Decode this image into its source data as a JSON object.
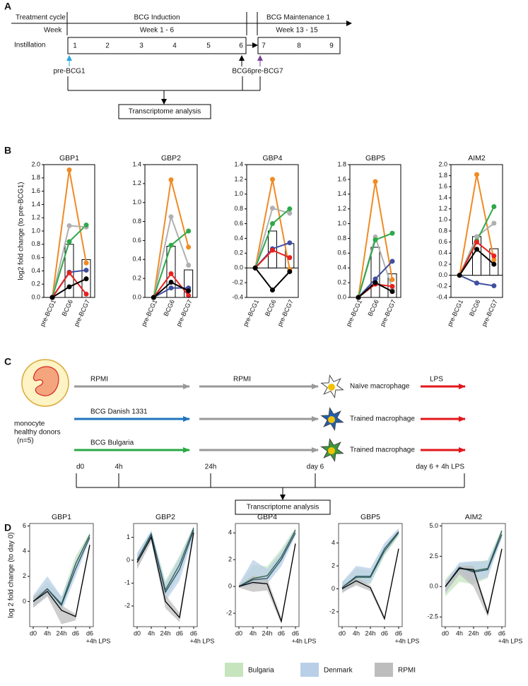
{
  "panels": [
    "A",
    "B",
    "C",
    "D"
  ],
  "diagram_a": {
    "treatment_cycle": "Treatment cycle",
    "week": "Week",
    "instillation": "Instillation",
    "induction": "BCG Induction",
    "induction_weeks": "Week 1 - 6",
    "maintenance": "BCG Maintenance 1",
    "maintenance_weeks": "Week 13 - 15",
    "instillations": [
      1,
      2,
      3,
      4,
      5,
      6,
      7,
      8,
      9
    ],
    "samples": [
      "pre-BCG1",
      "BCG6",
      "pre-BCG7"
    ],
    "analysis": "Transcriptome analysis"
  },
  "diagram_c": {
    "cell": [
      "monocyte",
      "healthy donors",
      "(n=5)"
    ],
    "arms": [
      {
        "stimulus": "RPMI",
        "rest": "RPMI",
        "macrophage": "Naïve macrophage"
      },
      {
        "stimulus": "BCG Danish 1331",
        "macrophage": "Trained macrophage"
      },
      {
        "stimulus": "BCG Bulgaria",
        "macrophage": "Trained macrophage"
      }
    ],
    "challenge": "LPS",
    "timepoints": [
      "d0",
      "4h",
      "24h",
      "day 6",
      "day 6 + 4h LPS"
    ],
    "analysis": "Transcriptome analysis"
  },
  "chart_data": [
    {
      "type": "line",
      "title": "GBP1",
      "ylabel": "log2 fold change (to pre-BCG1)",
      "categories": [
        "pre-BCG1",
        "BCG6",
        "pre-BCG7"
      ],
      "ylim": [
        0,
        2.0
      ],
      "yticks": [
        {
          "value": 0,
          "label": "0.0"
        },
        0.2,
        0.4,
        0.6,
        0.8,
        {
          "value": 1,
          "label": "1.0"
        },
        1.2,
        1.4,
        1.6,
        1.8,
        {
          "value": 2,
          "label": "2.0"
        }
      ],
      "bar_values": [
        0,
        0.8,
        0.57
      ],
      "bar_fill": "#ffffff",
      "bar_edge": "#000000",
      "series": [
        {
          "color": "#f08a24",
          "values": [
            0,
            1.92,
            0.52
          ]
        },
        {
          "color": "#b0b0b0",
          "values": [
            0,
            1.08,
            1.06
          ]
        },
        {
          "color": "#2fa84a",
          "values": [
            0,
            0.84,
            1.09
          ]
        },
        {
          "color": "#3f4fa0",
          "values": [
            0,
            0.38,
            0.41
          ]
        },
        {
          "color": "#e8211f",
          "values": [
            0,
            0.37,
            0.05
          ]
        },
        {
          "color": "#000000",
          "values": [
            0,
            0.16,
            0.28
          ]
        }
      ]
    },
    {
      "type": "line",
      "title": "GBP2",
      "categories": [
        "pre-BCG1",
        "BCG6",
        "pre-BCG7"
      ],
      "ylim": [
        0,
        1.4
      ],
      "yticks": [
        {
          "value": 0,
          "label": "0.0"
        },
        0.2,
        0.4,
        0.6,
        0.8,
        {
          "value": 1,
          "label": "1.0"
        },
        1.2,
        1.4
      ],
      "bar_values": [
        0,
        0.54,
        0.29
      ],
      "bar_fill": "#ffffff",
      "bar_edge": "#000000",
      "series": [
        {
          "color": "#f08a24",
          "values": [
            0,
            1.24,
            0.53
          ]
        },
        {
          "color": "#b0b0b0",
          "values": [
            0,
            0.85,
            0.34
          ]
        },
        {
          "color": "#2fa84a",
          "values": [
            0,
            0.55,
            0.7
          ]
        },
        {
          "color": "#3f4fa0",
          "values": [
            0,
            0.1,
            0.1
          ]
        },
        {
          "color": "#e8211f",
          "values": [
            0,
            0.25,
            0.02
          ]
        },
        {
          "color": "#000000",
          "values": [
            0,
            0.16,
            0.07
          ]
        }
      ]
    },
    {
      "type": "line",
      "title": "GBP4",
      "categories": [
        "pre-BCG1",
        "BCG6",
        "pre-BCG7"
      ],
      "ylim": [
        -0.4,
        1.4
      ],
      "yticks": [
        -0.4,
        -0.2,
        {
          "value": 0,
          "label": "0.0"
        },
        0.2,
        0.4,
        0.6,
        0.8,
        {
          "value": 1,
          "label": "1.0"
        },
        1.2,
        1.4
      ],
      "bar_values": [
        0,
        0.5,
        0.33
      ],
      "bar_fill": "#ffffff",
      "bar_edge": "#000000",
      "series": [
        {
          "color": "#f08a24",
          "values": [
            0,
            1.2,
            -0.02
          ]
        },
        {
          "color": "#b0b0b0",
          "values": [
            0,
            0.81,
            0.74
          ]
        },
        {
          "color": "#2fa84a",
          "values": [
            0,
            0.6,
            0.8
          ]
        },
        {
          "color": "#3f4fa0",
          "values": [
            0,
            0.26,
            0.34
          ]
        },
        {
          "color": "#e8211f",
          "values": [
            0,
            0.24,
            0.14
          ]
        },
        {
          "color": "#000000",
          "values": [
            0,
            -0.3,
            -0.05
          ]
        }
      ]
    },
    {
      "type": "line",
      "title": "GBP5",
      "categories": [
        "pre-BCG1",
        "BCG6",
        "pre-BCG7"
      ],
      "ylim": [
        0,
        1.8
      ],
      "yticks": [
        {
          "value": 0,
          "label": "0.0"
        },
        0.2,
        0.4,
        0.6,
        0.8,
        {
          "value": 1,
          "label": "1.0"
        },
        1.2,
        1.4,
        1.6,
        1.8
      ],
      "bar_values": [
        0,
        0.68,
        0.32
      ],
      "bar_fill": "#ffffff",
      "bar_edge": "#000000",
      "series": [
        {
          "color": "#f08a24",
          "values": [
            0,
            1.57,
            0.24
          ]
        },
        {
          "color": "#b0b0b0",
          "values": [
            0,
            0.82,
            0.12
          ]
        },
        {
          "color": "#2fa84a",
          "values": [
            0,
            0.78,
            0.87
          ]
        },
        {
          "color": "#3f4fa0",
          "values": [
            0,
            0.25,
            0.49
          ]
        },
        {
          "color": "#e8211f",
          "values": [
            0,
            0.18,
            0.15
          ]
        },
        {
          "color": "#000000",
          "values": [
            0,
            0.2,
            0.08
          ]
        }
      ]
    },
    {
      "type": "line",
      "title": "AIM2",
      "categories": [
        "pre-BCG1",
        "BCG6",
        "pre-BCG7"
      ],
      "ylim": [
        -0.4,
        2.0
      ],
      "yticks": [
        -0.4,
        -0.2,
        {
          "value": 0,
          "label": "0.0"
        },
        0.2,
        0.4,
        0.6,
        0.8,
        {
          "value": 1,
          "label": "1.0"
        },
        1.2,
        1.4,
        1.6,
        1.8,
        {
          "value": 2,
          "label": "2.0"
        }
      ],
      "bar_values": [
        0,
        0.7,
        0.48
      ],
      "bar_fill": "#ffffff",
      "bar_edge": "#000000",
      "series": [
        {
          "color": "#f08a24",
          "values": [
            0,
            1.82,
            0.28
          ]
        },
        {
          "color": "#b0b0b0",
          "values": [
            0,
            0.7,
            0.94
          ]
        },
        {
          "color": "#2fa84a",
          "values": [
            0,
            0.62,
            1.24
          ]
        },
        {
          "color": "#3f4fa0",
          "values": [
            0,
            -0.14,
            -0.19
          ]
        },
        {
          "color": "#e8211f",
          "values": [
            0,
            0.6,
            0.35
          ]
        },
        {
          "color": "#000000",
          "values": [
            0,
            0.47,
            0.2
          ]
        }
      ]
    },
    {
      "type": "band",
      "title": "GBP1",
      "ylabel": "log 2 fold change (to day 0)",
      "categories": [
        "d0",
        "4h",
        "24h",
        "d6",
        "d6"
      ],
      "x_note": "+4h LPS",
      "ylim": [
        -2,
        6.2
      ],
      "yticks": [
        0,
        2,
        4,
        6
      ],
      "series": [
        {
          "color": "#c6e5bf",
          "line_color": "#2f5e44",
          "values": [
            0,
            1.0,
            -0.2,
            3.0,
            5.3
          ],
          "lower": [
            -0.4,
            0.6,
            -0.6,
            2.4,
            5.0
          ],
          "upper": [
            0.4,
            1.6,
            0.4,
            3.6,
            5.5
          ]
        },
        {
          "color": "#b9cfe8",
          "line_color": "#27506a",
          "values": [
            0,
            1.0,
            -0.3,
            2.6,
            5.1
          ],
          "lower": [
            -0.5,
            0.5,
            -0.8,
            2.0,
            4.9
          ],
          "upper": [
            0.5,
            2.0,
            0.4,
            3.2,
            5.4
          ]
        },
        {
          "color": "#bdbdbd",
          "line_color": "#000000",
          "values": [
            0,
            0.8,
            -0.7,
            -1.2,
            4.5
          ],
          "lower": [
            -0.5,
            0.4,
            -1.8,
            -1.5,
            4.2
          ],
          "upper": [
            0.4,
            1.1,
            -0.3,
            -1.0,
            4.7
          ]
        }
      ]
    },
    {
      "type": "band",
      "title": "GBP2",
      "categories": [
        "d0",
        "4h",
        "24h",
        "d6",
        "d6"
      ],
      "x_note": "+4h LPS",
      "ylim": [
        -2.9,
        1.6
      ],
      "yticks": [
        -2,
        -1,
        0,
        1
      ],
      "series": [
        {
          "color": "#c6e5bf",
          "line_color": "#2f5e44",
          "values": [
            0,
            1.1,
            -1.3,
            -0.2,
            1.4
          ],
          "lower": [
            -0.2,
            0.9,
            -1.7,
            -0.6,
            1.2
          ],
          "upper": [
            0.3,
            1.3,
            -0.9,
            0.2,
            1.5
          ]
        },
        {
          "color": "#b9cfe8",
          "line_color": "#27506a",
          "values": [
            0,
            1.15,
            -1.4,
            -0.4,
            1.3
          ],
          "lower": [
            -0.3,
            0.9,
            -1.8,
            -0.9,
            1.1
          ],
          "upper": [
            0.3,
            1.3,
            -1.0,
            0.1,
            1.5
          ]
        },
        {
          "color": "#bdbdbd",
          "line_color": "#000000",
          "values": [
            -0.1,
            1.0,
            -1.8,
            -2.5,
            1.2
          ],
          "lower": [
            -0.4,
            0.8,
            -2.1,
            -2.7,
            1.0
          ],
          "upper": [
            0.1,
            1.1,
            -1.5,
            -2.3,
            1.4
          ]
        }
      ]
    },
    {
      "type": "band",
      "title": "GBP4",
      "categories": [
        "d0",
        "4h",
        "24h",
        "d6",
        "d6"
      ],
      "x_note": "+4h LPS",
      "ylim": [
        -3,
        4.7
      ],
      "yticks": [
        -2,
        0,
        2,
        4
      ],
      "series": [
        {
          "color": "#c6e5bf",
          "line_color": "#2f5e44",
          "values": [
            0,
            0.6,
            0.8,
            2.2,
            4.2
          ],
          "lower": [
            -0.1,
            0.3,
            0.4,
            1.8,
            4.0
          ],
          "upper": [
            0.1,
            1.6,
            1.5,
            2.8,
            4.4
          ]
        },
        {
          "color": "#b9cfe8",
          "line_color": "#27506a",
          "values": [
            0,
            0.5,
            0.6,
            2.0,
            4.0
          ],
          "lower": [
            -0.1,
            0.1,
            0.2,
            1.5,
            3.8
          ],
          "upper": [
            0.2,
            2.0,
            1.3,
            2.6,
            4.3
          ]
        },
        {
          "color": "#bdbdbd",
          "line_color": "#000000",
          "values": [
            0,
            0.3,
            0.2,
            -2.6,
            3.2
          ],
          "lower": [
            -0.1,
            -0.4,
            -0.3,
            -2.8,
            3.0
          ],
          "upper": [
            0.1,
            0.8,
            0.6,
            -2.3,
            3.4
          ]
        }
      ]
    },
    {
      "type": "band",
      "title": "GBP5",
      "categories": [
        "d0",
        "4h",
        "24h",
        "d6",
        "d6"
      ],
      "x_note": "+4h LPS",
      "ylim": [
        -3.3,
        5.7
      ],
      "yticks": [
        -2,
        0,
        2,
        4
      ],
      "series": [
        {
          "color": "#c6e5bf",
          "line_color": "#2f5e44",
          "values": [
            0.1,
            1.0,
            1.0,
            3.3,
            4.9
          ],
          "lower": [
            -0.3,
            0.4,
            0.4,
            2.9,
            4.6
          ],
          "upper": [
            0.5,
            1.8,
            1.6,
            3.8,
            5.2
          ]
        },
        {
          "color": "#b9cfe8",
          "line_color": "#27506a",
          "values": [
            0.1,
            1.1,
            1.1,
            3.5,
            5.0
          ],
          "lower": [
            -0.4,
            0.5,
            0.5,
            3.0,
            4.7
          ],
          "upper": [
            0.6,
            2.0,
            1.8,
            4.0,
            5.3
          ]
        },
        {
          "color": "#bdbdbd",
          "line_color": "#000000",
          "values": [
            0,
            0.7,
            0.1,
            -2.6,
            3.5
          ],
          "lower": [
            -0.3,
            0.3,
            -0.2,
            -2.8,
            3.3
          ],
          "upper": [
            0.3,
            1.0,
            0.3,
            -2.4,
            3.7
          ]
        }
      ]
    },
    {
      "type": "band",
      "title": "AIM2",
      "categories": [
        "d0",
        "4h",
        "24h",
        "d6",
        "d6"
      ],
      "x_note": "+4h LPS",
      "ylim": [
        -3.3,
        5.2
      ],
      "yticks": [
        -2.5,
        {
          "value": 0,
          "label": "0.0"
        },
        2.5,
        {
          "value": 5,
          "label": "5.0"
        }
      ],
      "series": [
        {
          "color": "#c6e5bf",
          "line_color": "#2f5e44",
          "values": [
            0,
            1.5,
            1.3,
            1.5,
            4.6
          ],
          "lower": [
            -0.8,
            0.4,
            0.2,
            0.7,
            4.3
          ],
          "upper": [
            0.6,
            1.9,
            2.0,
            2.2,
            4.8
          ]
        },
        {
          "color": "#b9cfe8",
          "line_color": "#27506a",
          "values": [
            0,
            1.6,
            1.2,
            1.4,
            4.3
          ],
          "lower": [
            -0.6,
            1.2,
            0.4,
            0.8,
            4.0
          ],
          "upper": [
            0.4,
            2.0,
            2.1,
            2.1,
            4.6
          ]
        },
        {
          "color": "#bdbdbd",
          "line_color": "#000000",
          "values": [
            0,
            1.5,
            1.4,
            -2.2,
            3.1
          ],
          "lower": [
            -0.5,
            1.0,
            0.0,
            -2.5,
            2.9
          ],
          "upper": [
            0.3,
            1.7,
            1.7,
            -1.9,
            3.3
          ]
        }
      ]
    }
  ],
  "legend_d": [
    {
      "name": "Bulgaria",
      "color": "#c6e5bf"
    },
    {
      "name": "Denmark",
      "color": "#b9cfe8"
    },
    {
      "name": "RPMI",
      "color": "#bdbdbd"
    }
  ]
}
